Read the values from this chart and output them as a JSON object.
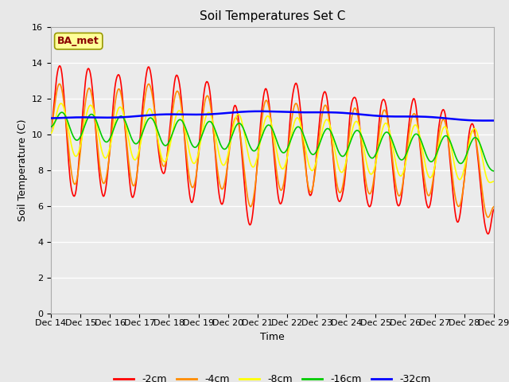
{
  "title": "Soil Temperatures Set C",
  "xlabel": "Time",
  "ylabel": "Soil Temperature (C)",
  "ylim": [
    0,
    16
  ],
  "yticks": [
    0,
    2,
    4,
    6,
    8,
    10,
    12,
    14,
    16
  ],
  "x_labels": [
    "Dec 14",
    "Dec 15",
    "Dec 16",
    "Dec 17",
    "Dec 18",
    "Dec 19",
    "Dec 20",
    "Dec 21",
    "Dec 22",
    "Dec 23",
    "Dec 24",
    "Dec 25",
    "Dec 26",
    "Dec 27",
    "Dec 28",
    "Dec 29"
  ],
  "annotation_text": "BA_met",
  "annotation_color": "#8B0000",
  "annotation_bg": "#FFFF99",
  "fig_bg_color": "#E8E8E8",
  "plot_bg_color": "#EBEBEB",
  "legend_entries": [
    "-2cm",
    "-4cm",
    "-8cm",
    "-16cm",
    "-32cm"
  ],
  "line_colors": [
    "#FF0000",
    "#FF8C00",
    "#FFFF00",
    "#00CC00",
    "#0000FF"
  ],
  "line_widths": [
    1.2,
    1.2,
    1.2,
    1.2,
    1.8
  ],
  "title_fontsize": 11,
  "label_fontsize": 9,
  "tick_fontsize": 8,
  "legend_fontsize": 9
}
